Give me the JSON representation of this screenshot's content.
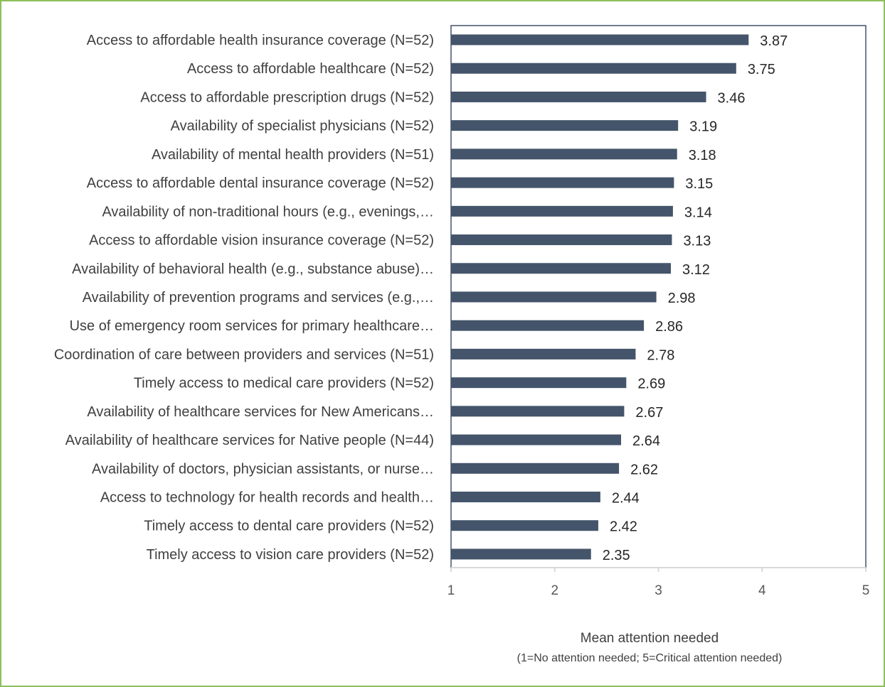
{
  "colors": {
    "frame_border": "#8cbf5a",
    "bar": "#44546a",
    "plot_border": "#44546a",
    "axis_line": "#d9d9d9"
  },
  "chart_data": {
    "type": "bar",
    "orientation": "horizontal",
    "categories": [
      "Access to affordable health insurance coverage (N=52)",
      "Access to affordable healthcare (N=52)",
      "Access to affordable prescription drugs (N=52)",
      "Availability of specialist physicians (N=52)",
      "Availability of mental health providers (N=51)",
      "Access to affordable dental insurance coverage (N=52)",
      "Availability of non-traditional hours (e.g., evenings,…",
      "Access to affordable vision insurance coverage (N=52)",
      "Availability of behavioral health (e.g., substance abuse)…",
      "Availability of prevention programs and services (e.g.,…",
      "Use of emergency room services for primary healthcare…",
      "Coordination of care between providers and services (N=51)",
      "Timely access to medical care providers (N=52)",
      "Availability of healthcare services for New Americans…",
      "Availability of healthcare services for Native people (N=44)",
      "Availability of doctors, physician assistants, or nurse…",
      "Access to technology for health records and health…",
      "Timely access to dental care providers (N=52)",
      "Timely access to vision care providers (N=52)"
    ],
    "values": [
      3.87,
      3.75,
      3.46,
      3.19,
      3.18,
      3.15,
      3.14,
      3.13,
      3.12,
      2.98,
      2.86,
      2.78,
      2.69,
      2.67,
      2.64,
      2.62,
      2.44,
      2.42,
      2.35
    ],
    "value_labels": [
      "3.87",
      "3.75",
      "3.46",
      "3.19",
      "3.18",
      "3.15",
      "3.14",
      "3.13",
      "3.12",
      "2.98",
      "2.86",
      "2.78",
      "2.69",
      "2.67",
      "2.64",
      "2.62",
      "2.44",
      "2.42",
      "2.35"
    ],
    "xlim": [
      1,
      5
    ],
    "xticks": [
      "1",
      "2",
      "3",
      "4",
      "5"
    ],
    "xlabel": "Mean attention needed",
    "xlabel_note": "(1=No attention needed; 5=Critical attention needed)",
    "ylabel": "",
    "title": "",
    "grid": false,
    "legend": "none"
  }
}
